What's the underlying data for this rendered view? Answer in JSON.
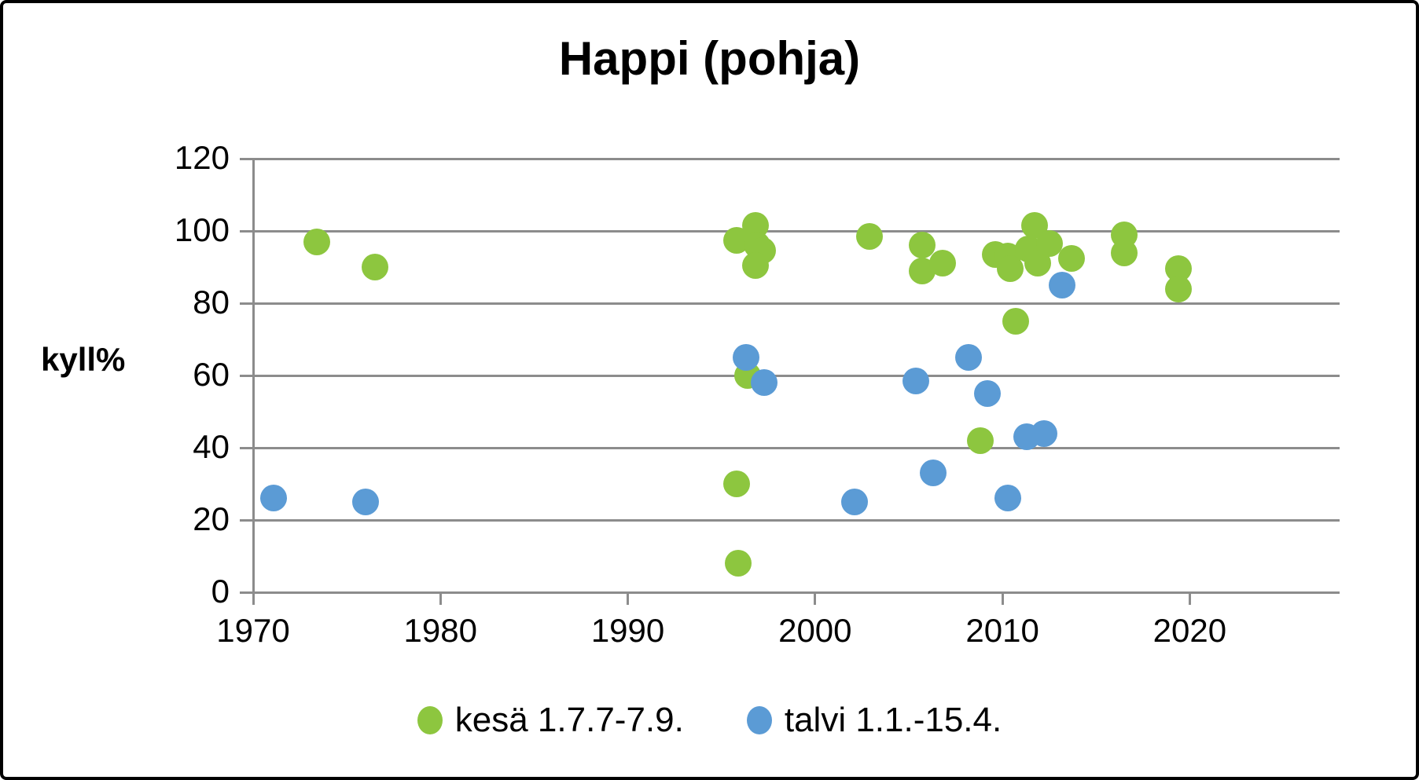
{
  "title": "Happi (pohja)",
  "y_axis_label": "kyll%",
  "chart_data": {
    "type": "scatter",
    "title": "Happi (pohja)",
    "xlabel": "",
    "ylabel": "kyll%",
    "xlim": [
      1970,
      2028
    ],
    "ylim": [
      0,
      120
    ],
    "x_ticks": [
      1970,
      1980,
      1990,
      2000,
      2010,
      2020
    ],
    "y_ticks": [
      0,
      20,
      40,
      60,
      80,
      100,
      120
    ],
    "grid": "horizontal",
    "gridline_color": "#8c8c8c",
    "legend_position": "bottom",
    "marker_size_px": 34,
    "series": [
      {
        "name": "kesä 1.7.7-7.9.",
        "color": "#8dc63f",
        "points": [
          [
            1973.4,
            97
          ],
          [
            1976.5,
            90
          ],
          [
            1995.8,
            97.5
          ],
          [
            1996.8,
            101.5
          ],
          [
            1996.9,
            96
          ],
          [
            1997.2,
            94.5
          ],
          [
            1996.8,
            90.5
          ],
          [
            1996.4,
            60
          ],
          [
            1995.8,
            30
          ],
          [
            1995.9,
            8
          ],
          [
            2002.9,
            98.5
          ],
          [
            2005.7,
            96
          ],
          [
            2005.7,
            89
          ],
          [
            2006.8,
            91
          ],
          [
            2008.8,
            42
          ],
          [
            2009.6,
            93.5
          ],
          [
            2010.3,
            93
          ],
          [
            2010.4,
            89.5
          ],
          [
            2010.7,
            75
          ],
          [
            2011.4,
            95
          ],
          [
            2011.7,
            101.5
          ],
          [
            2011.9,
            91
          ],
          [
            2012.5,
            96.5
          ],
          [
            2013.7,
            92.5
          ],
          [
            2016.5,
            99
          ],
          [
            2016.5,
            94
          ],
          [
            2019.4,
            89.5
          ],
          [
            2019.4,
            84
          ]
        ]
      },
      {
        "name": "talvi 1.1.-15.4.",
        "color": "#5b9bd5",
        "points": [
          [
            1971.1,
            26
          ],
          [
            1976.0,
            25
          ],
          [
            1996.3,
            65
          ],
          [
            1997.3,
            58
          ],
          [
            2002.1,
            25
          ],
          [
            2005.4,
            58.5
          ],
          [
            2006.3,
            33
          ],
          [
            2008.2,
            65
          ],
          [
            2009.2,
            55
          ],
          [
            2010.3,
            26
          ],
          [
            2011.3,
            43
          ],
          [
            2012.2,
            44
          ],
          [
            2013.2,
            85
          ]
        ]
      }
    ]
  }
}
